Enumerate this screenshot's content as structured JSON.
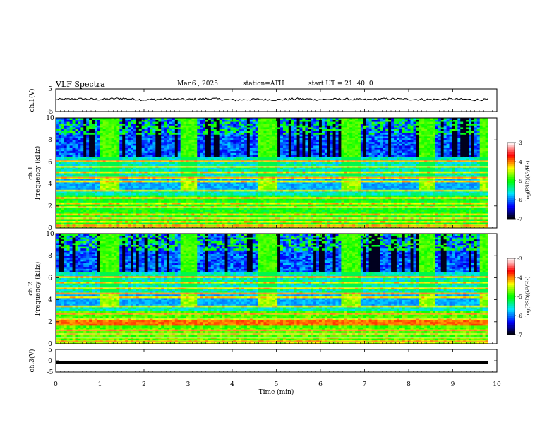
{
  "header": {
    "title": "VLF  Spectra",
    "date": "Mar.6  , 2025",
    "station": "station=ATH",
    "start": "start  UT  =   21: 40: 0"
  },
  "colors": {
    "background": "#ffffff",
    "axis": "#000000",
    "colormap": [
      "#000000",
      "#0000ff",
      "#00e5ff",
      "#00ff00",
      "#ffff00",
      "#ff0000",
      "#ffffff"
    ]
  },
  "chart_data": [
    {
      "type": "line",
      "panel": "ch1-waveform",
      "ylabel": "ch.1(V)",
      "ylim": [
        -5,
        5
      ],
      "yticks": [
        "5",
        "-5"
      ],
      "x": [
        0,
        0.5,
        1,
        1.5,
        2,
        2.5,
        3,
        3.5,
        4,
        4.5,
        5,
        5.5,
        6,
        6.5,
        7,
        7.5,
        8,
        8.5,
        9,
        9.5,
        9.8
      ],
      "y": [
        0.3,
        0.6,
        0.4,
        0.8,
        0.2,
        0.5,
        0.3,
        0.7,
        0.1,
        0.4,
        0.2,
        0.6,
        0.3,
        0.5,
        0.2,
        0.6,
        0.4,
        0.3,
        0.5,
        0.2,
        0.3
      ]
    },
    {
      "type": "heatmap",
      "panel": "ch1-spectrogram",
      "ylabel": "ch.1\nFrequency (kHz)",
      "ylim": [
        0,
        10
      ],
      "yticks": [
        "0",
        "2",
        "4",
        "6",
        "8",
        "10"
      ],
      "colorbar": {
        "label": "log(PSD)(V²/Hz)",
        "range": [
          -7,
          -3
        ],
        "ticks": [
          "-3",
          "-4",
          "-5",
          "-6",
          "-7"
        ]
      }
    },
    {
      "type": "heatmap",
      "panel": "ch2-spectrogram",
      "ylabel": "ch.2\nFrequency (kHz)",
      "ylim": [
        0,
        10
      ],
      "yticks": [
        "0",
        "2",
        "4",
        "6",
        "8",
        "10"
      ],
      "colorbar": {
        "label": "log(PSD)(V²/Hz)",
        "range": [
          -7,
          -3
        ],
        "ticks": [
          "-3",
          "-4",
          "-5",
          "-6",
          "-7"
        ]
      }
    },
    {
      "type": "line",
      "panel": "ch3-waveform",
      "ylabel": "ch.3(V)",
      "ylim": [
        -5,
        5
      ],
      "yticks": [
        "5",
        "0",
        "-5"
      ],
      "x": [
        0,
        9.8
      ],
      "y": [
        -0.8,
        -0.8
      ]
    }
  ],
  "xaxis": {
    "label": "Time  (min)",
    "ticks": [
      "0",
      "1",
      "2",
      "3",
      "4",
      "5",
      "6",
      "7",
      "8",
      "9",
      "10"
    ],
    "range": [
      0,
      10
    ],
    "data_end": 9.8
  }
}
